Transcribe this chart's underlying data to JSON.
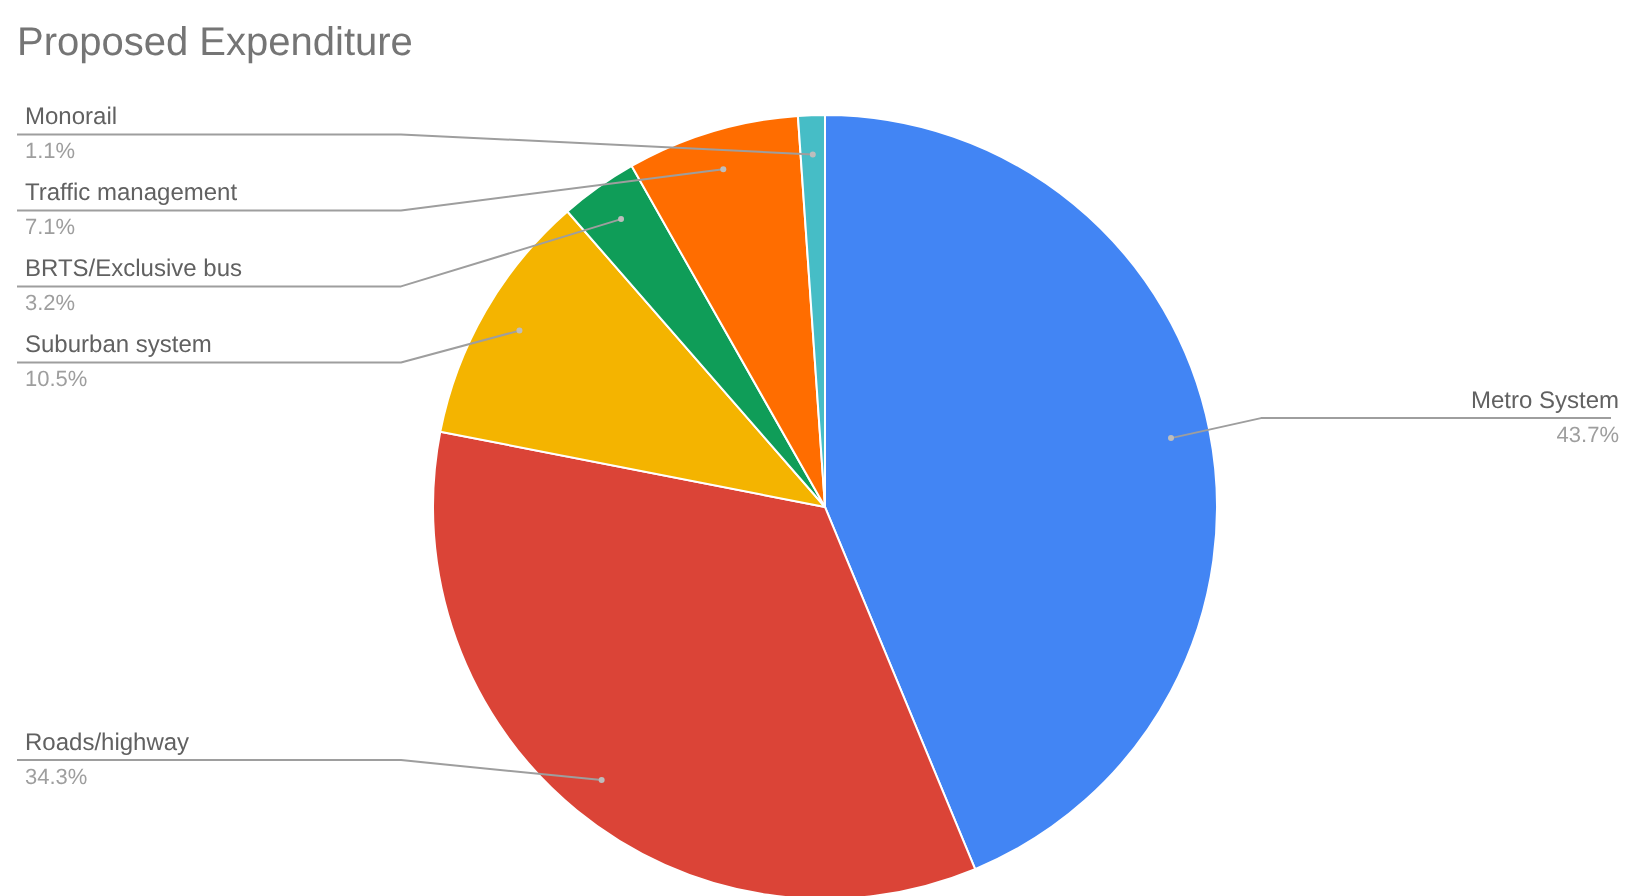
{
  "chart_data": {
    "type": "pie",
    "title": "Proposed Expenditure",
    "categories": [
      "Metro System",
      "Roads/highway",
      "Suburban system",
      "BRTS/Exclusive bus",
      "Traffic management",
      "Monorail"
    ],
    "values": [
      43.7,
      34.3,
      10.5,
      3.2,
      7.1,
      1.1
    ],
    "colors": [
      "#4285f4",
      "#db4437",
      "#f4b400",
      "#0f9d58",
      "#ff6d00",
      "#46bdc6"
    ],
    "value_labels": [
      "43.7%",
      "34.3%",
      "10.5%",
      "3.2%",
      "7.1%",
      "1.1%"
    ]
  }
}
